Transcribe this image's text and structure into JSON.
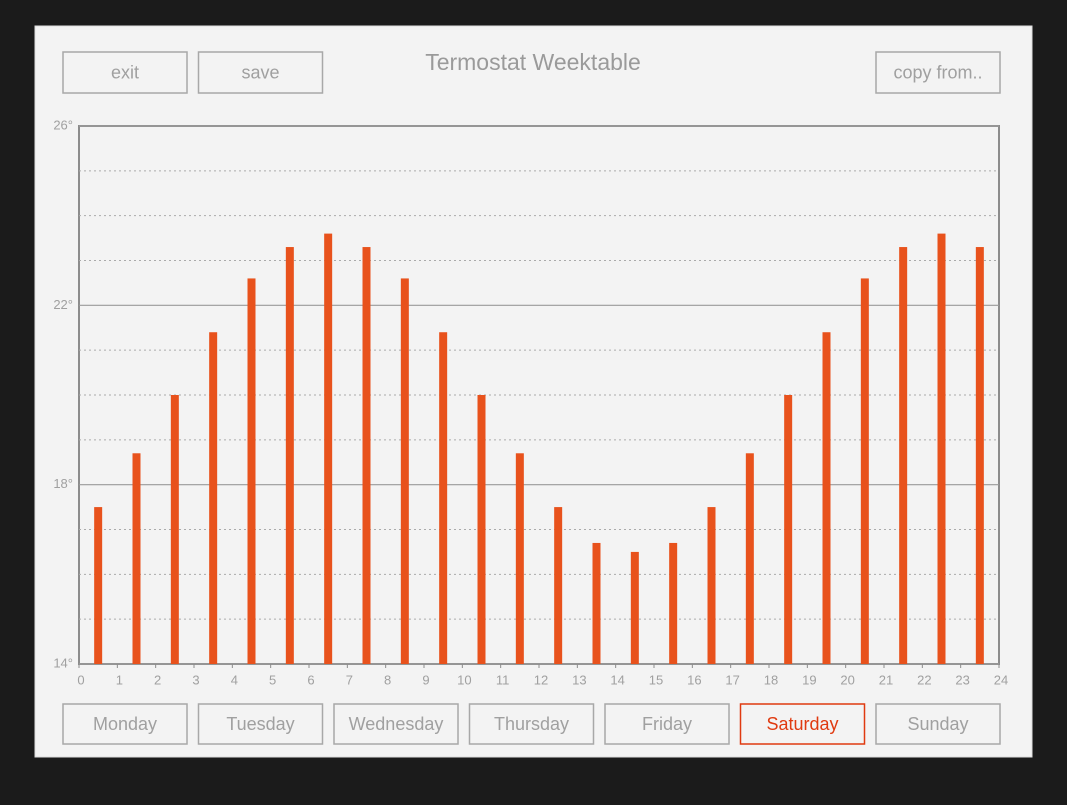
{
  "header": {
    "title": "Termostat Weektable",
    "buttons": [
      "exit",
      "save"
    ],
    "copy_button": "copy from.."
  },
  "chart_data": {
    "type": "bar",
    "x": [
      0.5,
      1.5,
      2.5,
      3.5,
      4.5,
      5.5,
      6.5,
      7.5,
      8.5,
      9.5,
      10.5,
      11.5,
      12.5,
      13.5,
      14.5,
      15.5,
      16.5,
      17.5,
      18.5,
      19.5,
      20.5,
      21.5,
      22.5,
      23.5
    ],
    "values": [
      17.5,
      18.7,
      20,
      21.4,
      22.6,
      23.3,
      23.6,
      23.3,
      22.6,
      21.4,
      20,
      18.7,
      17.5,
      16.7,
      16.5,
      16.7,
      17.5,
      18.7,
      20,
      21.4,
      22.6,
      23.3,
      23.6,
      23.3
    ],
    "color": "#e8521c",
    "xlim": [
      0,
      24
    ],
    "xticks": [
      0,
      1,
      2,
      3,
      4,
      5,
      6,
      7,
      8,
      9,
      10,
      11,
      12,
      13,
      14,
      15,
      16,
      17,
      18,
      19,
      20,
      21,
      22,
      23,
      24
    ],
    "ylim": [
      14,
      26
    ],
    "yticks": [
      {
        "value": 14,
        "label": "14°"
      },
      {
        "value": 18,
        "label": "18°"
      },
      {
        "value": 22,
        "label": "22°"
      },
      {
        "value": 26,
        "label": "26°"
      }
    ],
    "y_minor_ticks": [
      15,
      16,
      17,
      19,
      20,
      21,
      23,
      24,
      25
    ],
    "grid": true
  },
  "days": {
    "labels": [
      "Monday",
      "Tuesday",
      "Wednesday",
      "Thursday",
      "Friday",
      "Saturday",
      "Sunday"
    ],
    "selected_index": 5,
    "selected_color": "#e03a10"
  }
}
